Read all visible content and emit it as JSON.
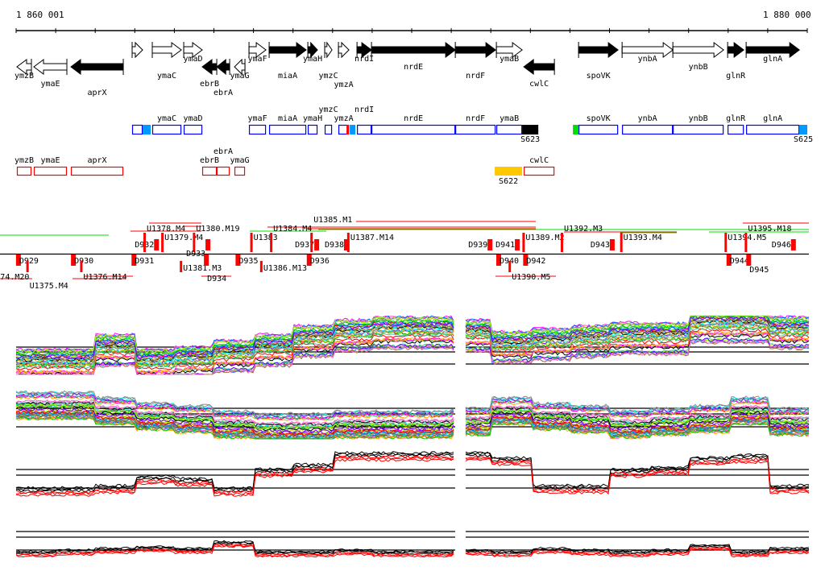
{
  "ruler": {
    "start_label": "1 860 001",
    "end_label": "1 880 000",
    "start_bp": 1860001,
    "end_bp": 1880000,
    "tick_count": 21
  },
  "genes": [
    {
      "name": "ymzB",
      "start": 1860021,
      "end": 1860388,
      "strand": "-",
      "fill": "#ffffff"
    },
    {
      "name": "ymaE",
      "start": 1860449,
      "end": 1861284,
      "strand": "-",
      "fill": "#ffffff"
    },
    {
      "name": "aprX",
      "start": 1861386,
      "end": 1862710,
      "strand": "-",
      "fill": "#000000"
    },
    {
      "name": "",
      "start": 1862934,
      "end": 1863199,
      "strand": "+",
      "fill": "#ffffff"
    },
    {
      "name": "ymaC",
      "start": 1863443,
      "end": 1864177,
      "strand": "+",
      "fill": "#ffffff"
    },
    {
      "name": "ymaD",
      "start": 1864238,
      "end": 1864706,
      "strand": "+",
      "fill": "#ffffff"
    },
    {
      "name": "ebrB",
      "start": 1864706,
      "end": 1865073,
      "strand": "-",
      "fill": "#000000"
    },
    {
      "name": "ebrA",
      "start": 1865073,
      "end": 1865399,
      "strand": "-",
      "fill": "#000000"
    },
    {
      "name": "ymaG",
      "start": 1865521,
      "end": 1865786,
      "strand": "-",
      "fill": "#ffffff"
    },
    {
      "name": "ymaF",
      "start": 1865888,
      "end": 1866316,
      "strand": "+",
      "fill": "#ffffff"
    },
    {
      "name": "miaA",
      "start": 1866397,
      "end": 1867334,
      "strand": "+",
      "fill": "#000000"
    },
    {
      "name": "ymaH",
      "start": 1867375,
      "end": 1867619,
      "strand": "+",
      "fill": "#000000"
    },
    {
      "name": "ymzC",
      "start": 1867802,
      "end": 1867986,
      "strand": "+",
      "fill": "#ffffff"
    },
    {
      "name": "ymzA",
      "start": 1868149,
      "end": 1868414,
      "strand": "+",
      "fill": "#ffffff"
    },
    {
      "name": "nrdI",
      "start": 1868618,
      "end": 1868984,
      "strand": "+",
      "fill": "#000000"
    },
    {
      "name": "nrdE",
      "start": 1868984,
      "end": 1871103,
      "strand": "+",
      "fill": "#000000"
    },
    {
      "name": "nrdF",
      "start": 1871103,
      "end": 1872121,
      "strand": "+",
      "fill": "#000000"
    },
    {
      "name": "ymaB",
      "start": 1872141,
      "end": 1872793,
      "strand": "+",
      "fill": "#ffffff"
    },
    {
      "name": "cwlC",
      "start": 1872834,
      "end": 1873608,
      "strand": "-",
      "fill": "#000000"
    },
    {
      "name": "spoVK",
      "start": 1874219,
      "end": 1875217,
      "strand": "+",
      "fill": "#000000"
    },
    {
      "name": "ynbA",
      "start": 1875319,
      "end": 1876602,
      "strand": "+",
      "fill": "#ffffff"
    },
    {
      "name": "ynbB",
      "start": 1876602,
      "end": 1877885,
      "strand": "+",
      "fill": "#ffffff"
    },
    {
      "name": "glnR",
      "start": 1877987,
      "end": 1878394,
      "strand": "+",
      "fill": "#000000"
    },
    {
      "name": "glnA",
      "start": 1878455,
      "end": 1879800,
      "strand": "+",
      "fill": "#000000"
    }
  ],
  "segments_forward": [
    {
      "label": "",
      "start": 1863199,
      "end": 1863403,
      "color": "#0099ff"
    },
    {
      "label": "",
      "start": 1868353,
      "end": 1868414,
      "color": "#ff0000"
    },
    {
      "label": "",
      "start": 1868435,
      "end": 1868577,
      "color": "#0099ff"
    },
    {
      "label": "S623",
      "start": 1872793,
      "end": 1873201,
      "color": "#000000"
    },
    {
      "label": "",
      "start": 1874076,
      "end": 1874219,
      "color": "#00dd00"
    },
    {
      "label": "S625",
      "start": 1879800,
      "end": 1880000,
      "color": "#0099ff"
    }
  ],
  "segments_reverse": [
    {
      "label": "S622",
      "start": 1872100,
      "end": 1872793,
      "color": "#ffc800"
    }
  ],
  "features_above": [
    {
      "label": "D932",
      "pos": 1863000
    },
    {
      "label": "U1378.M4",
      "pos": 1863300
    },
    {
      "label": "U1379.M4",
      "pos": 1863750
    },
    {
      "label": "U1380.M19",
      "pos": 1864550
    },
    {
      "label": "D933",
      "pos": 1864300
    },
    {
      "label": "U1383",
      "pos": 1866000
    },
    {
      "label": "U1384.M4",
      "pos": 1866500
    },
    {
      "label": "D937",
      "pos": 1867050
    },
    {
      "label": "U1385.M1",
      "pos": 1867520
    },
    {
      "label": "D938",
      "pos": 1867800
    },
    {
      "label": "U1387.M14",
      "pos": 1868450
    },
    {
      "label": "D939",
      "pos": 1871430
    },
    {
      "label": "D941",
      "pos": 1872120
    },
    {
      "label": "U1389.M2",
      "pos": 1872880
    },
    {
      "label": "U1392.M3",
      "pos": 1873850
    },
    {
      "label": "D943",
      "pos": 1874520
    },
    {
      "label": "U1393.M4",
      "pos": 1875350
    },
    {
      "label": "U1394.M5",
      "pos": 1877990
    },
    {
      "label": "U1395.M18",
      "pos": 1878500
    },
    {
      "label": "D946",
      "pos": 1879100
    }
  ],
  "features_below": [
    {
      "label": "D929",
      "pos": 1860080
    },
    {
      "label": "74.M20",
      "pos": 1859600
    },
    {
      "label": "U1375.M4",
      "pos": 1860340
    },
    {
      "label": "D930",
      "pos": 1861470
    },
    {
      "label": "U1376.M14",
      "pos": 1861700
    },
    {
      "label": "D931",
      "pos": 1863000
    },
    {
      "label": "U1381.M3",
      "pos": 1864220
    },
    {
      "label": "D934",
      "pos": 1864830
    },
    {
      "label": "D935",
      "pos": 1865630
    },
    {
      "label": "U1386.M13",
      "pos": 1866250
    },
    {
      "label": "D936",
      "pos": 1867430
    },
    {
      "label": "D940",
      "pos": 1872220
    },
    {
      "label": "D942",
      "pos": 1872900
    },
    {
      "label": "U1390.M5",
      "pos": 1872530
    },
    {
      "label": "D944",
      "pos": 1878040
    },
    {
      "label": "D945",
      "pos": 1878540
    }
  ],
  "colors": {
    "forward_track": "#0000ff",
    "reverse_track": "#ff0000",
    "feature": "#ff0000",
    "feature_alt": "#00dd00"
  },
  "series_palette": [
    "#ff00ff",
    "#00ffff",
    "#ffaa00",
    "#00cc00",
    "#0066ff",
    "#ff0000",
    "#aaff00",
    "#888888",
    "#996633",
    "#ff66cc",
    "#33cc99",
    "#6600ff",
    "#cccc00",
    "#000000"
  ]
}
